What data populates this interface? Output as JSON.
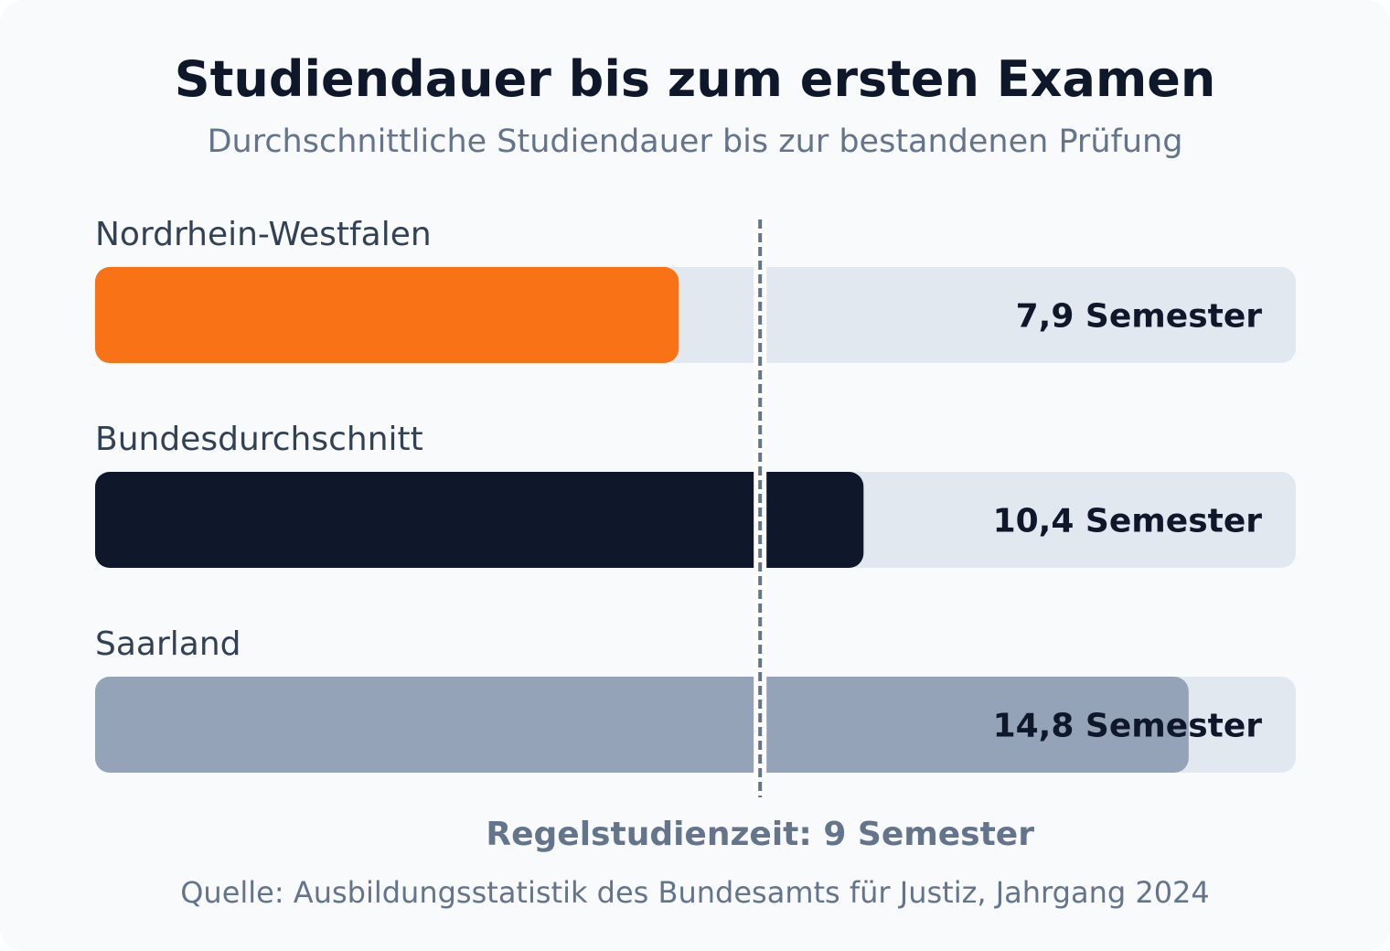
{
  "chart_data": {
    "type": "bar",
    "orientation": "horizontal",
    "title": "Studiendauer bis zum ersten Examen",
    "subtitle": "Durchschnittliche Studiendauer bis zur bestandenen Prüfung",
    "unit": "Semester",
    "xlim": [
      0,
      16.25
    ],
    "categories": [
      "Nordrhein-Westfalen",
      "Bundesdurchschnitt",
      "Saarland"
    ],
    "values": [
      7.9,
      10.4,
      14.8
    ],
    "value_labels": [
      "7,9 Semester",
      "10,4 Semester",
      "14,8 Semester"
    ],
    "colors": [
      "#f97316",
      "#0f172a",
      "#94a3b8"
    ],
    "track_color": "#e2e8f0",
    "reference_line": {
      "value": 9,
      "label": "Regelstudienzeit: 9 Semester",
      "color": "#64748b",
      "style": "dashed"
    },
    "source": "Quelle: Ausbildungsstatistik des Bundesamts für Justiz, Jahrgang 2024",
    "grid": false,
    "legend": "none"
  }
}
